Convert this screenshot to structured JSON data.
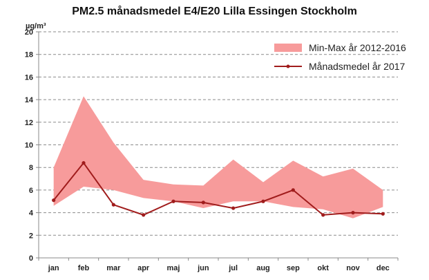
{
  "chart_data": {
    "type": "line",
    "title": "PM2.5 månadsmedel E4/E20 Lilla Essingen Stockholm",
    "ylabel": "µg/m³",
    "xlabel": "",
    "ylim": [
      0,
      20
    ],
    "yticks": [
      0,
      2,
      4,
      6,
      8,
      10,
      12,
      14,
      16,
      18,
      20
    ],
    "grid": true,
    "legend_position": "top-right",
    "categories": [
      "jan",
      "feb",
      "mar",
      "apr",
      "maj",
      "jun",
      "jul",
      "aug",
      "sep",
      "okt",
      "nov",
      "dec"
    ],
    "band": {
      "name": "Min-Max år 2012-2016",
      "color": "#f79b9b",
      "min": [
        4.6,
        6.3,
        6.0,
        5.3,
        5.0,
        4.4,
        5.0,
        5.0,
        4.5,
        4.3,
        3.5,
        4.5
      ],
      "max": [
        8.0,
        14.3,
        10.2,
        6.9,
        6.5,
        6.4,
        8.7,
        6.7,
        8.6,
        7.2,
        7.9,
        6.0
      ]
    },
    "series": [
      {
        "name": "Månadsmedel år 2017",
        "color": "#a01c1c",
        "values": [
          5.1,
          8.4,
          4.7,
          3.8,
          5.0,
          4.9,
          4.4,
          5.0,
          6.0,
          3.8,
          4.0,
          3.9
        ]
      }
    ]
  }
}
